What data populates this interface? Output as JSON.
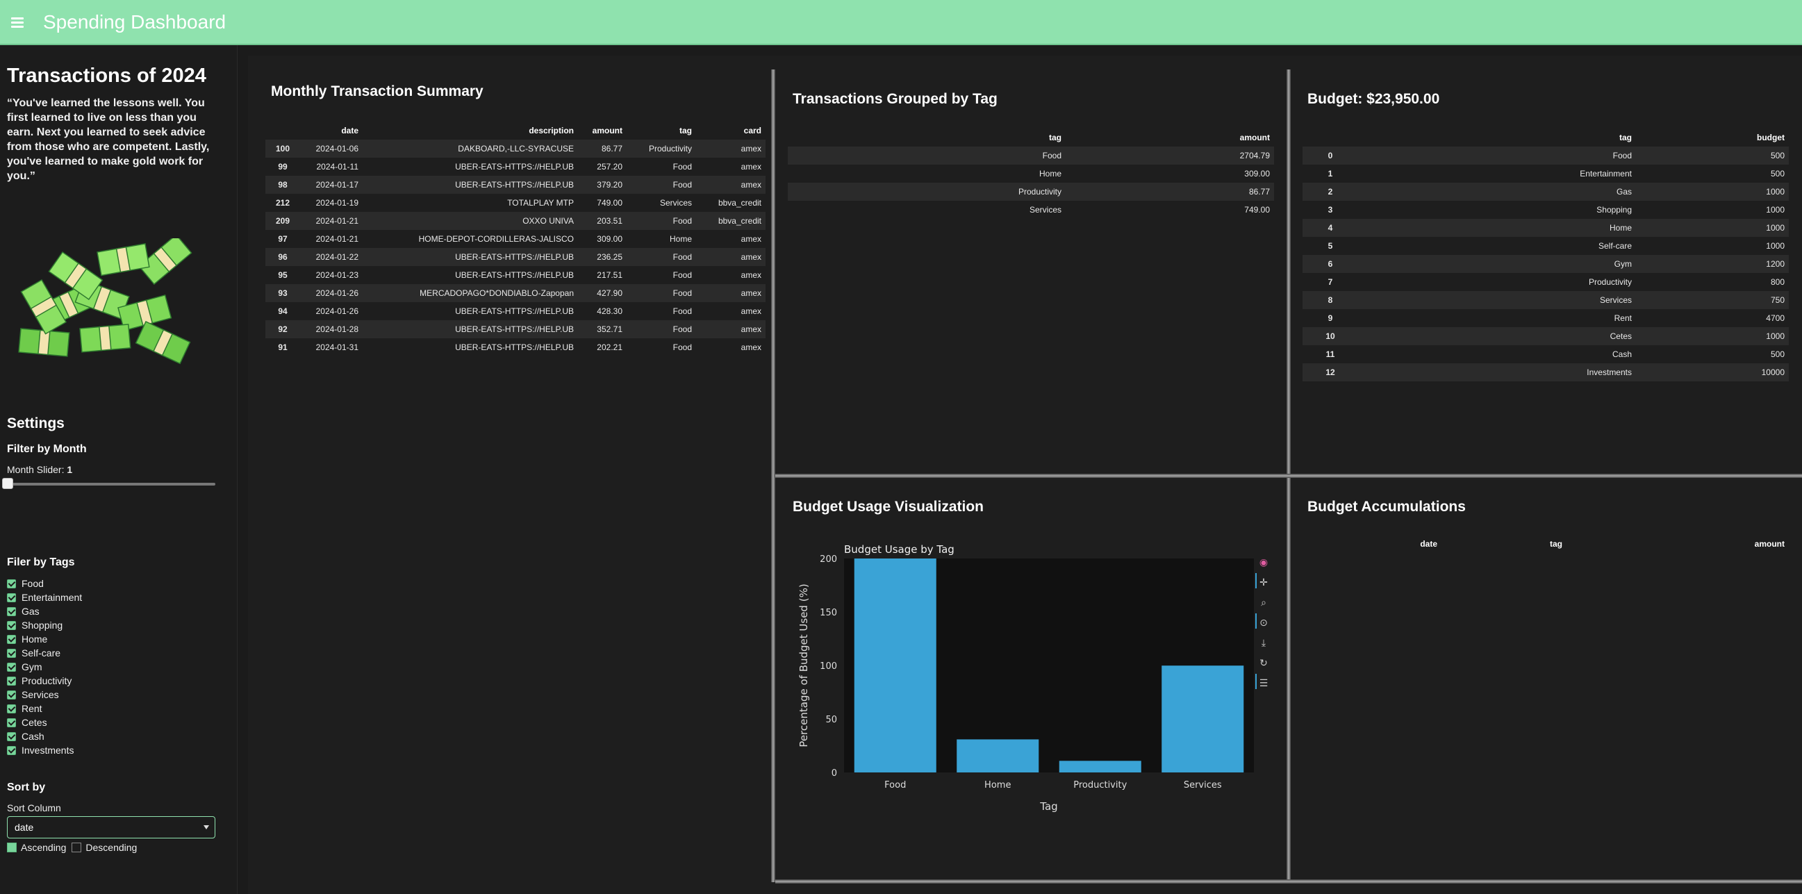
{
  "header": {
    "title": "Spending Dashboard"
  },
  "sidebar": {
    "title": "Transactions of 2024",
    "quote": "“You've learned the lessons well. You first learned to live on less than you earn. Next you learned to seek advice from those who are competent. Lastly, you've learned to make gold work for you.”",
    "settings_title": "Settings",
    "filter_month_title": "Filter by Month",
    "slider_label": "Month Slider:",
    "slider_value": "1",
    "tags_title": "Filer by Tags",
    "tags": [
      "Food",
      "Entertainment",
      "Gas",
      "Shopping",
      "Home",
      "Self-care",
      "Gym",
      "Productivity",
      "Services",
      "Rent",
      "Cetes",
      "Cash",
      "Investments"
    ],
    "sort_title": "Sort by",
    "sort_column_label": "Sort Column",
    "sort_column_value": "date",
    "ascending_label": "Ascending",
    "descending_label": "Descending"
  },
  "monthly": {
    "title": "Monthly Transaction Summary",
    "columns": [
      "",
      "date",
      "description",
      "amount",
      "tag",
      "card"
    ],
    "rows": [
      [
        "100",
        "2024-01-06",
        "DAKBOARD,-LLC-SYRACUSE",
        "86.77",
        "Productivity",
        "amex"
      ],
      [
        "99",
        "2024-01-11",
        "UBER-EATS-HTTPS://HELP.UB",
        "257.20",
        "Food",
        "amex"
      ],
      [
        "98",
        "2024-01-17",
        "UBER-EATS-HTTPS://HELP.UB",
        "379.20",
        "Food",
        "amex"
      ],
      [
        "212",
        "2024-01-19",
        "TOTALPLAY MTP",
        "749.00",
        "Services",
        "bbva_credit"
      ],
      [
        "209",
        "2024-01-21",
        "OXXO UNIVA",
        "203.51",
        "Food",
        "bbva_credit"
      ],
      [
        "97",
        "2024-01-21",
        "HOME-DEPOT-CORDILLERAS-JALISCO",
        "309.00",
        "Home",
        "amex"
      ],
      [
        "96",
        "2024-01-22",
        "UBER-EATS-HTTPS://HELP.UB",
        "236.25",
        "Food",
        "amex"
      ],
      [
        "95",
        "2024-01-23",
        "UBER-EATS-HTTPS://HELP.UB",
        "217.51",
        "Food",
        "amex"
      ],
      [
        "93",
        "2024-01-26",
        "MERCADOPAGO*DONDIABLO-Zapopan",
        "427.90",
        "Food",
        "amex"
      ],
      [
        "94",
        "2024-01-26",
        "UBER-EATS-HTTPS://HELP.UB",
        "428.30",
        "Food",
        "amex"
      ],
      [
        "92",
        "2024-01-28",
        "UBER-EATS-HTTPS://HELP.UB",
        "352.71",
        "Food",
        "amex"
      ],
      [
        "91",
        "2024-01-31",
        "UBER-EATS-HTTPS://HELP.UB",
        "202.21",
        "Food",
        "amex"
      ]
    ]
  },
  "grouped": {
    "title": "Transactions Grouped by Tag",
    "columns": [
      "tag",
      "amount"
    ],
    "rows": [
      [
        "Food",
        "2704.79"
      ],
      [
        "Home",
        "309.00"
      ],
      [
        "Productivity",
        "86.77"
      ],
      [
        "Services",
        "749.00"
      ]
    ]
  },
  "budget": {
    "title": "Budget: $23,950.00",
    "columns": [
      "",
      "tag",
      "budget"
    ],
    "rows": [
      [
        "0",
        "Food",
        "500"
      ],
      [
        "1",
        "Entertainment",
        "500"
      ],
      [
        "2",
        "Gas",
        "1000"
      ],
      [
        "3",
        "Shopping",
        "1000"
      ],
      [
        "4",
        "Home",
        "1000"
      ],
      [
        "5",
        "Self-care",
        "1000"
      ],
      [
        "6",
        "Gym",
        "1200"
      ],
      [
        "7",
        "Productivity",
        "800"
      ],
      [
        "8",
        "Services",
        "750"
      ],
      [
        "9",
        "Rent",
        "4700"
      ],
      [
        "10",
        "Cetes",
        "1000"
      ],
      [
        "11",
        "Cash",
        "500"
      ],
      [
        "12",
        "Investments",
        "10000"
      ]
    ]
  },
  "usage": {
    "title": "Budget Usage Visualization"
  },
  "accum": {
    "title": "Budget Accumulations",
    "columns": [
      "date",
      "tag",
      "amount"
    ]
  },
  "chart_data": {
    "type": "bar",
    "title": "Budget Usage by Tag",
    "xlabel": "Tag",
    "ylabel": "Percentage of Budget Used (%)",
    "categories": [
      "Food",
      "Home",
      "Productivity",
      "Services"
    ],
    "values": [
      200,
      30.9,
      10.85,
      99.87
    ],
    "ylim": [
      0,
      200
    ],
    "yticks": [
      0,
      50,
      100,
      150,
      200
    ],
    "bar_color": "#3aa3d6",
    "grid": false
  }
}
